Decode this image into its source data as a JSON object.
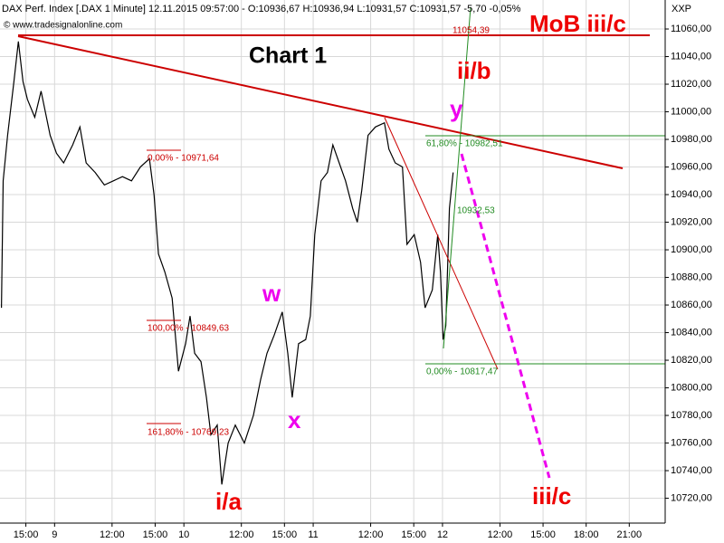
{
  "chart_data": {
    "type": "line",
    "header": "DAX Perf. Index [.DAX  1 Minute] 12.11.2015 09:57:00 - O:10936,67 H:10936,94 L:10931,57 C:10931,57 -5,70 -0,05%",
    "source": "© www.tradesignalonline.com",
    "axis_title": "XXP",
    "title": "Chart 1",
    "annotations": [
      "MoB iii/c",
      "ii/b",
      "y",
      "w",
      "x",
      "i/a",
      "iii/c",
      "11054,39",
      "0,00% - 10971,64",
      "100,00% - 10849,63",
      "161,80% - 10769,23",
      "61,80% - 10982,51",
      "0,00% - 10817,47",
      "10932,53"
    ],
    "x": [
      5.3,
      5.42,
      5.73,
      6.17,
      6.48,
      6.8,
      7.11,
      7.62,
      8.06,
      8.69,
      9.13,
      9.63,
      10.26,
      10.76,
      11.2,
      11.83,
      12.46,
      13.09,
      13.72,
      14.35,
      14.97,
      15.6,
      15.92,
      16.23,
      16.67,
      17.18,
      17.62,
      18.12,
      18.43,
      18.75,
      19.19,
      19.57,
      19.88,
      20.32,
      20.64,
      21.08,
      21.58,
      22.21,
      22.84,
      23.34,
      23.78,
      24.28,
      24.85,
      25.23,
      25.54,
      25.98,
      26.48,
      26.8,
      27.11,
      27.55,
      27.99,
      28.37,
      28.81,
      29.25,
      29.75,
      30.07,
      30.38,
      30.82,
      31.33,
      31.96,
      32.27,
      32.71,
      33.21,
      33.53,
      34.03,
      34.47,
      34.79,
      35.29,
      35.67,
      35.86,
      36.04,
      36.23,
      36.48,
      36.74
    ],
    "series": [
      {
        "name": "DAX Perf. Index",
        "color": "#000000",
        "values": [
          10858,
          10950,
          10983,
          11022,
          11051,
          11022,
          11009,
          10996,
          11015,
          10983,
          10970,
          10963,
          10976,
          10989,
          10963,
          10956,
          10947,
          10950,
          10953,
          10950,
          10960,
          10966,
          10940,
          10897,
          10884,
          10865,
          10812,
          10832,
          10852,
          10825,
          10819,
          10793,
          10766,
          10773,
          10730,
          10760,
          10773,
          10760,
          10780,
          10806,
          10825,
          10838,
          10855,
          10825,
          10793,
          10832,
          10835,
          10852,
          10911,
          10950,
          10956,
          10976,
          10963,
          10950,
          10930,
          10920,
          10943,
          10983,
          10989,
          10992,
          10973,
          10963,
          10960,
          10904,
          10911,
          10891,
          10858,
          10871,
          10911,
          10884,
          10835,
          10845,
          10930,
          10956
        ]
      }
    ],
    "xlim": [
      5.2,
      51.5
    ],
    "xticks": [
      {
        "value": 7,
        "label": "15:00"
      },
      9,
      {
        "value": 13,
        "label": "12:00"
      },
      {
        "value": 16,
        "label": "15:00"
      },
      {
        "value": 18,
        "label": "10"
      },
      {
        "value": 22,
        "label": "12:00"
      },
      {
        "value": 25,
        "label": "15:00"
      },
      {
        "value": 27,
        "label": "11"
      },
      {
        "value": 31,
        "label": "12:00"
      },
      {
        "value": 34,
        "label": "15:00"
      },
      {
        "value": 36,
        "label": "12"
      },
      {
        "value": 40,
        "label": "12:00"
      },
      {
        "value": 43,
        "label": "15:00"
      },
      {
        "value": 46,
        "label": "18:00"
      },
      {
        "value": 49,
        "label": "21:00"
      }
    ],
    "ylim": [
      10702,
      11081
    ],
    "yticks": [
      {
        "value": 10720,
        "label": "10720,00"
      },
      {
        "value": 10740,
        "label": "10740,00"
      },
      {
        "value": 10760,
        "label": "10760,00"
      },
      {
        "value": 10780,
        "label": "10780,00"
      },
      {
        "value": 10800,
        "label": "10800,00"
      },
      {
        "value": 10820,
        "label": "10820,00"
      },
      {
        "value": 10840,
        "label": "10840,00"
      },
      {
        "value": 10860,
        "label": "10860,00"
      },
      {
        "value": 10880,
        "label": "10880,00"
      },
      {
        "value": 10900,
        "label": "10900,00"
      },
      {
        "value": 10920,
        "label": "10920,00"
      },
      {
        "value": 10940,
        "label": "10940,00"
      },
      {
        "value": 10960,
        "label": "10960,00"
      },
      {
        "value": 10980,
        "label": "10980,00"
      },
      {
        "value": 11000,
        "label": "11000,00"
      },
      {
        "value": 11020,
        "label": "11020,00"
      },
      {
        "value": 11040,
        "label": "11040,00"
      },
      {
        "value": 11060,
        "label": "11060,00"
      }
    ],
    "grid": true
  }
}
